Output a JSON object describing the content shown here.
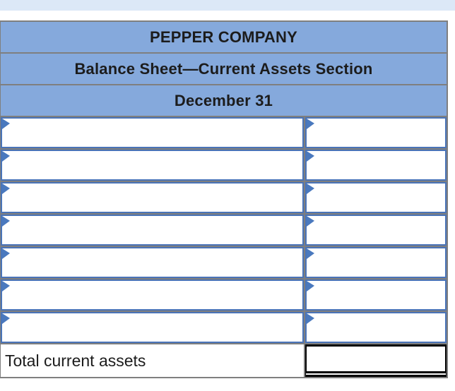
{
  "header": {
    "company": "PEPPER COMPANY",
    "statement": "Balance Sheet—Current Assets Section",
    "date": "December 31"
  },
  "rows": [
    {
      "account": "",
      "amount": ""
    },
    {
      "account": "",
      "amount": ""
    },
    {
      "account": "",
      "amount": ""
    },
    {
      "account": "",
      "amount": ""
    },
    {
      "account": "",
      "amount": ""
    },
    {
      "account": "",
      "amount": ""
    },
    {
      "account": "",
      "amount": ""
    }
  ],
  "total": {
    "label": "Total current assets",
    "value": ""
  },
  "colors": {
    "top_strip": "#DCE8F7",
    "header_bg": "#85A9DC",
    "grid_line": "#7F7F7F",
    "cell_border": "#4A74B8",
    "marker": "#4A79BE",
    "total_border": "#000000"
  }
}
